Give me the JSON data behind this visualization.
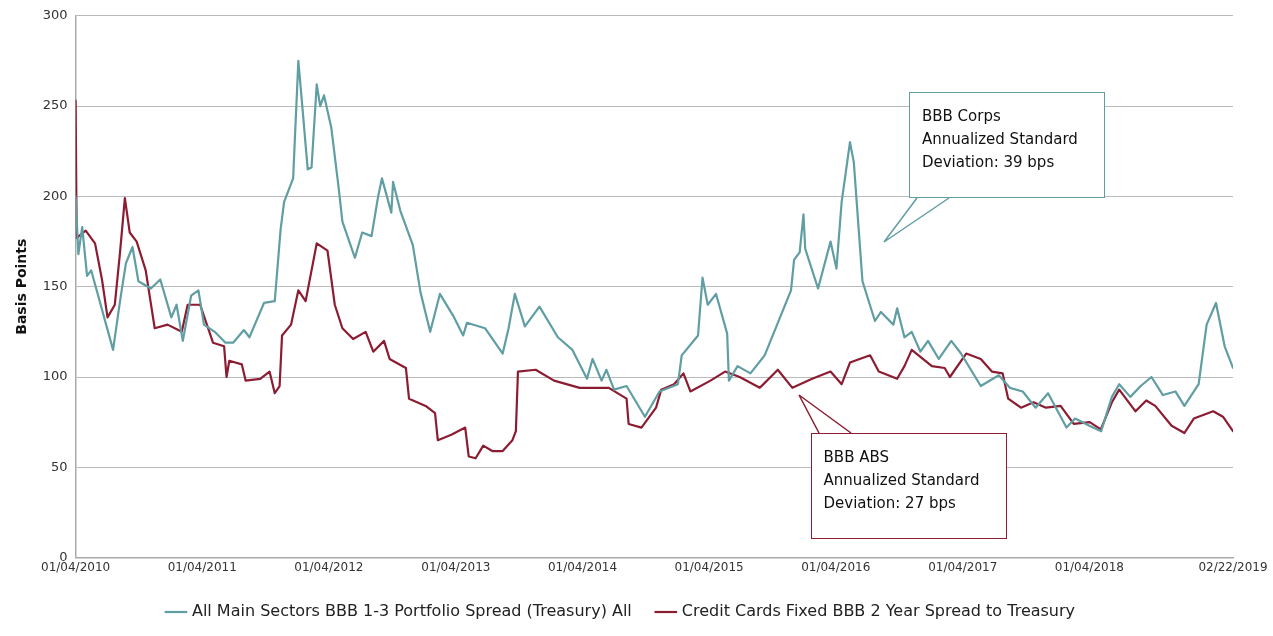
{
  "chart_data": {
    "type": "line",
    "ylabel": "Basis Points",
    "xlim": [
      "2010-01-04",
      "2019-02-22"
    ],
    "xticks": [
      {
        "value": "2010-01-04",
        "label": "01/04/2010"
      },
      {
        "value": "2011-01-04",
        "label": "01/04/2011"
      },
      {
        "value": "2012-01-04",
        "label": "01/04/2012"
      },
      {
        "value": "2013-01-04",
        "label": "01/04/2013"
      },
      {
        "value": "2014-01-04",
        "label": "01/04/2014"
      },
      {
        "value": "2015-01-04",
        "label": "01/04/2015"
      },
      {
        "value": "2016-01-04",
        "label": "01/04/2016"
      },
      {
        "value": "2017-01-04",
        "label": "01/04/2017"
      },
      {
        "value": "2018-01-04",
        "label": "01/04/2018"
      },
      {
        "value": "2019-02-22",
        "label": "02/22/2019"
      }
    ],
    "ylim": [
      0,
      300
    ],
    "yticks": [
      0,
      50,
      100,
      150,
      200,
      250,
      300
    ],
    "grid": "y",
    "legend": "bottom",
    "marker": "none",
    "line_style": "solid",
    "series": [
      {
        "name": "All Main Sectors BBB 1-3 Portfolio Spread (Treasury) All",
        "color": "#609ea3",
        "x": [
          "2010-01-04",
          "2010-01-12",
          "2010-01-23",
          "2010-02-06",
          "2010-02-18",
          "2010-04-22",
          "2010-05-12",
          "2010-05-29",
          "2010-06-17",
          "2010-07-04",
          "2010-08-09",
          "2010-09-05",
          "2010-10-07",
          "2010-10-22",
          "2010-11-09",
          "2010-12-03",
          "2010-12-24",
          "2011-01-09",
          "2011-02-09",
          "2011-03-12",
          "2011-04-03",
          "2011-05-04",
          "2011-05-20",
          "2011-07-01",
          "2011-08-01",
          "2011-08-18",
          "2011-08-28",
          "2011-09-23",
          "2011-09-28",
          "2011-10-08",
          "2011-10-18",
          "2011-11-04",
          "2011-11-15",
          "2011-11-30",
          "2011-12-10",
          "2011-12-21",
          "2012-01-11",
          "2012-02-01",
          "2012-02-12",
          "2012-03-19",
          "2012-04-09",
          "2012-05-06",
          "2012-05-25",
          "2012-06-05",
          "2012-07-02",
          "2012-07-07",
          "2012-07-28",
          "2012-09-02",
          "2012-09-24",
          "2012-10-22",
          "2012-11-19",
          "2012-12-27",
          "2013-01-25",
          "2013-02-05",
          "2013-03-29",
          "2013-05-19",
          "2013-06-05",
          "2013-06-23",
          "2013-07-22",
          "2013-09-02",
          "2013-10-25",
          "2013-12-06",
          "2014-01-17",
          "2014-02-02",
          "2014-02-28",
          "2014-03-14",
          "2014-04-05",
          "2014-05-11",
          "2014-07-03",
          "2014-08-14",
          "2014-10-06",
          "2014-10-17",
          "2014-12-03",
          "2014-12-16",
          "2014-12-31",
          "2015-01-24",
          "2015-02-25",
          "2015-03-02",
          "2015-03-27",
          "2015-05-03",
          "2015-06-13",
          "2015-07-17",
          "2015-08-28",
          "2015-09-06",
          "2015-09-22",
          "2015-10-03",
          "2015-10-08",
          "2015-11-14",
          "2015-12-20",
          "2016-01-06",
          "2016-01-21",
          "2016-02-14",
          "2016-02-25",
          "2016-03-21",
          "2016-04-26",
          "2016-05-13",
          "2016-06-18",
          "2016-06-29",
          "2016-07-20",
          "2016-08-10",
          "2016-09-04",
          "2016-09-26",
          "2016-10-27",
          "2016-12-02",
          "2016-12-30",
          "2017-02-25",
          "2017-04-18",
          "2017-05-20",
          "2017-06-26",
          "2017-08-02",
          "2017-09-07",
          "2017-10-30",
          "2017-11-24",
          "2018-01-04",
          "2018-02-07",
          "2018-03-10",
          "2018-03-31",
          "2018-05-02",
          "2018-06-01",
          "2018-07-02",
          "2018-08-04",
          "2018-09-09",
          "2018-10-05",
          "2018-11-15",
          "2018-12-08",
          "2019-01-04",
          "2019-01-29",
          "2019-02-22"
        ],
        "values": [
          200,
          168,
          183,
          156,
          159,
          115,
          142,
          163,
          172,
          153,
          149,
          154,
          133,
          140,
          120,
          145,
          148,
          129,
          125,
          119,
          119,
          126,
          122,
          141,
          142,
          182,
          197,
          210,
          232,
          275,
          253,
          215,
          216,
          262,
          250,
          256,
          238,
          205,
          186,
          166,
          180,
          178,
          200,
          210,
          191,
          208,
          192,
          173,
          147,
          125,
          146,
          134,
          123,
          130,
          127,
          113,
          127,
          146,
          128,
          139,
          122,
          115,
          99,
          110,
          98,
          104,
          93,
          95,
          78,
          92,
          96,
          112,
          123,
          155,
          140,
          146,
          124,
          98,
          106,
          102,
          112,
          128,
          148,
          165,
          169,
          190,
          171,
          149,
          175,
          160,
          197,
          230,
          219,
          153,
          131,
          136,
          129,
          138,
          122,
          125,
          114,
          120,
          110,
          120,
          113,
          95,
          101,
          94,
          92,
          83,
          91,
          72,
          77,
          73,
          70,
          89,
          96,
          89,
          95,
          100,
          90,
          92,
          84,
          96,
          129,
          141,
          117,
          105
        ]
      },
      {
        "name": "Credit Cards Fixed BBB 2 Year Spread to Treasury",
        "color": "#8c1c31",
        "x": [
          "2010-01-04",
          "2010-01-07",
          "2010-02-02",
          "2010-03-01",
          "2010-03-21",
          "2010-04-06",
          "2010-04-27",
          "2010-05-12",
          "2010-05-26",
          "2010-06-09",
          "2010-06-29",
          "2010-07-25",
          "2010-08-20",
          "2010-09-26",
          "2010-11-06",
          "2010-11-23",
          "2010-12-29",
          "2011-02-04",
          "2011-03-08",
          "2011-03-15",
          "2011-03-23",
          "2011-04-28",
          "2011-05-09",
          "2011-06-20",
          "2011-07-17",
          "2011-08-01",
          "2011-08-15",
          "2011-08-22",
          "2011-09-17",
          "2011-10-08",
          "2011-10-29",
          "2011-11-30",
          "2011-12-31",
          "2012-01-21",
          "2012-02-12",
          "2012-03-14",
          "2012-04-19",
          "2012-05-11",
          "2012-06-11",
          "2012-06-27",
          "2012-08-13",
          "2012-08-22",
          "2012-10-09",
          "2012-11-05",
          "2012-11-13",
          "2012-12-22",
          "2013-01-31",
          "2013-02-10",
          "2013-03-02",
          "2013-03-24",
          "2013-04-19",
          "2013-05-19",
          "2013-06-16",
          "2013-06-26",
          "2013-07-02",
          "2013-08-22",
          "2013-10-14",
          "2013-12-27",
          "2014-03-21",
          "2014-05-11",
          "2014-05-17",
          "2014-06-23",
          "2014-08-04",
          "2014-08-19",
          "2014-09-25",
          "2014-10-22",
          "2014-11-11",
          "2015-01-08",
          "2015-02-19",
          "2015-04-02",
          "2015-05-30",
          "2015-07-21",
          "2015-09-01",
          "2015-10-28",
          "2015-12-20",
          "2016-01-21",
          "2016-02-14",
          "2016-04-12",
          "2016-05-07",
          "2016-06-29",
          "2016-07-20",
          "2016-08-10",
          "2016-10-07",
          "2016-11-13",
          "2016-11-28",
          "2017-01-14",
          "2017-02-25",
          "2017-03-29",
          "2017-04-29",
          "2017-05-15",
          "2017-06-21",
          "2017-07-27",
          "2017-09-01",
          "2017-10-13",
          "2017-11-20",
          "2018-01-05",
          "2018-02-06",
          "2018-03-10",
          "2018-03-31",
          "2018-05-17",
          "2018-06-17",
          "2018-07-13",
          "2018-08-29",
          "2018-10-05",
          "2018-11-01",
          "2018-12-27",
          "2019-01-24",
          "2019-02-22"
        ],
        "values": [
          253,
          177,
          181,
          174,
          154,
          133,
          140,
          169,
          199,
          180,
          175,
          159,
          127,
          129,
          125,
          140,
          140,
          119,
          117,
          100,
          109,
          107,
          98,
          99,
          103,
          91,
          95,
          123,
          129,
          148,
          142,
          174,
          170,
          140,
          127,
          121,
          125,
          114,
          120,
          110,
          105,
          88,
          84,
          80,
          65,
          68,
          72,
          56,
          55,
          62,
          59,
          59,
          65,
          70,
          103,
          104,
          98,
          94,
          94,
          88,
          74,
          72,
          83,
          93,
          96,
          102,
          92,
          98,
          103,
          100,
          94,
          104,
          94,
          99,
          103,
          96,
          108,
          112,
          103,
          99,
          106,
          115,
          106,
          105,
          100,
          113,
          110,
          103,
          102,
          88,
          83,
          86,
          83,
          84,
          74,
          75,
          71,
          86,
          93,
          81,
          87,
          84,
          73,
          69,
          77,
          81,
          78,
          70
        ]
      }
    ],
    "annotations": [
      "BBB Corps\nAnnualized Standard\nDeviation: 39 bps",
      "BBB ABS\nAnnualized Standard\nDeviation: 27 bps"
    ]
  }
}
